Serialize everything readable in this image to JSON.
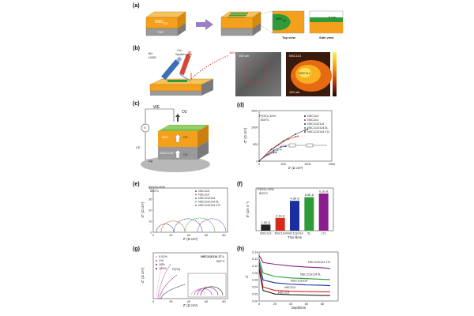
{
  "panels": {
    "a": {
      "label": "(a)",
      "substrate_label": "YSZ",
      "film_label": "NSC",
      "film_sub": "113",
      "zoom_inset_label": "NSC",
      "zoom_inset_sub": "114",
      "thickness_label": "5 nm",
      "top_view_label": "Top view",
      "side_view_label": "Side view"
    },
    "b": {
      "label": "(b)",
      "bi_label": "Bi+",
      "lmig_label": "LMIG",
      "cs_label": "Cs+",
      "sputter_label": "Sputter-gun",
      "o_label": "18O-",
      "scale1": "100 um",
      "scale2": "100 um",
      "nsc113": "NSC113",
      "nsc114": "NSC114"
    },
    "c": {
      "label": "(c)",
      "we": "WE",
      "ce": "CE",
      "o2": "O2",
      "v": "V",
      "o2minus1": "O2-",
      "o2minus2": "O2-",
      "ag": "Ag",
      "nsc": "NSC",
      "gdc_ysz": "GDC/YSZ"
    },
    "d": {
      "label": "(d)",
      "cond1": "P(O2)=10%",
      "cond2": "500°C",
      "ylabel": "-Z\" (Ω cm²)",
      "xlabel": "Z' (Ω cm²)",
      "legend": [
        "NSC113",
        "NSC114",
        "NSC113/114",
        "NSC113/114 5L",
        "NSC113/114 17L"
      ]
    },
    "e": {
      "label": "(e)",
      "cond1": "P(O2)=10%",
      "cond2": "500°C",
      "ylabel": "-Z\" (Ω cm²)",
      "xlabel": "Z' (Ω cm²)",
      "legend": [
        "NSC113",
        "NSC114",
        "NSC113/114",
        "NSC113/114 5L",
        "NSC113/114 17L"
      ]
    },
    "f": {
      "label": "(f)",
      "cond1": "P(O2)=10%",
      "cond2": "500°C",
      "ylabel": "k* (cm s⁻¹)",
      "xlabel": "Thin films",
      "bar_labels": [
        "1.0E-8",
        "2.1E-8",
        "4.9E-8",
        "5.5E-8",
        "6.1E-8"
      ],
      "categories": [
        "NSC113",
        "NSC114",
        "NSC113/114",
        "5L",
        "17L"
      ]
    },
    "g": {
      "label": "(g)",
      "legend": [
        "0.01%",
        "1%",
        "10%",
        "100%"
      ],
      "pO2": "P(O2)",
      "title": "NSC113/114 17 L",
      "temp": "500°C",
      "ylabel": "-Z\" (Ω cm²)",
      "xlabel": "Z' (Ω cm²)"
    },
    "h": {
      "label": "(h)",
      "ylabel": "C'",
      "xlabel": "Depth/nm",
      "curve_labels": [
        "NSC113/114 17L",
        "NSC113/114 5L",
        "NSC113/114",
        "NSC114",
        "NSC113"
      ]
    }
  },
  "colors": {
    "orange": "#f4a01c",
    "green": "#2e9a3a",
    "gray": "#9a9a9a",
    "red": "#d42a1a",
    "blue": "#1a2f9e",
    "purple": "#8a1e8c",
    "black": "#222222"
  },
  "chart_data": [
    {
      "type": "line",
      "title": "",
      "xlabel": "Z' (Ω cm²)",
      "ylabel": "-Z\" (Ω cm²)",
      "xlim": [
        0,
        1500
      ],
      "ylim": [
        0,
        1500
      ],
      "x_ticks": [
        "0",
        "500",
        "1000",
        "1500"
      ],
      "y_ticks": [
        "0",
        "500",
        "1000",
        "1500"
      ],
      "series": [
        {
          "name": "NSC113",
          "x": [
            0,
            250,
            500,
            750,
            950,
            1000
          ],
          "y": [
            0,
            350,
            600,
            800,
            920,
            950
          ]
        },
        {
          "name": "NSC114",
          "x": [
            0,
            200,
            400,
            600,
            750,
            800
          ],
          "y": [
            0,
            280,
            480,
            650,
            720,
            740
          ]
        },
        {
          "name": "NSC113/114",
          "x": [
            0,
            150,
            300,
            450,
            550
          ],
          "y": [
            0,
            180,
            320,
            420,
            440
          ]
        },
        {
          "name": "NSC113/114 5L",
          "x": [
            0,
            120,
            250,
            380,
            450
          ],
          "y": [
            0,
            150,
            260,
            330,
            340
          ]
        },
        {
          "name": "NSC113/114 17L",
          "x": [
            0,
            100,
            200,
            300,
            350
          ],
          "y": [
            0,
            120,
            200,
            250,
            260
          ]
        }
      ]
    },
    {
      "type": "bar",
      "title": "",
      "xlabel": "Thin films",
      "ylabel": "k* (cm s⁻¹)",
      "categories": [
        "NSC113",
        "NSC114",
        "NSC113/114",
        "5L",
        "17L"
      ],
      "values": [
        1e-08,
        2.1e-08,
        4.9e-08,
        5.5e-08,
        6.1e-08
      ]
    },
    {
      "type": "line",
      "title": "",
      "xlabel": "Depth/nm",
      "ylabel": "C'",
      "xlim": [
        0,
        100
      ],
      "ylim": [
        0,
        0.14
      ],
      "x_ticks": [
        "0",
        "20",
        "40",
        "60",
        "80"
      ],
      "y_ticks": [
        "0.00",
        "0.02",
        "0.04",
        "0.06",
        "0.08",
        "0.10",
        "0.12",
        "0.14"
      ],
      "series": [
        {
          "name": "NSC113/114 17L",
          "x": [
            0,
            5,
            20,
            40,
            60,
            80,
            90
          ],
          "y": [
            0.13,
            0.11,
            0.105,
            0.1,
            0.097,
            0.095,
            0.093
          ]
        },
        {
          "name": "NSC113/114 5L",
          "x": [
            0,
            5,
            20,
            40,
            60,
            80,
            90
          ],
          "y": [
            0.12,
            0.08,
            0.07,
            0.066,
            0.064,
            0.062,
            0.061
          ]
        },
        {
          "name": "NSC113/114",
          "x": [
            0,
            5,
            20,
            40,
            60,
            80,
            90
          ],
          "y": [
            0.11,
            0.06,
            0.052,
            0.048,
            0.046,
            0.045,
            0.044
          ]
        },
        {
          "name": "NSC114",
          "x": [
            0,
            5,
            20,
            40,
            60,
            80,
            90
          ],
          "y": [
            0.1,
            0.04,
            0.03,
            0.028,
            0.027,
            0.026,
            0.026
          ]
        },
        {
          "name": "NSC113",
          "x": [
            0,
            5,
            20,
            40,
            60,
            80,
            90
          ],
          "y": [
            0.09,
            0.03,
            0.02,
            0.018,
            0.017,
            0.016,
            0.016
          ]
        }
      ]
    }
  ]
}
